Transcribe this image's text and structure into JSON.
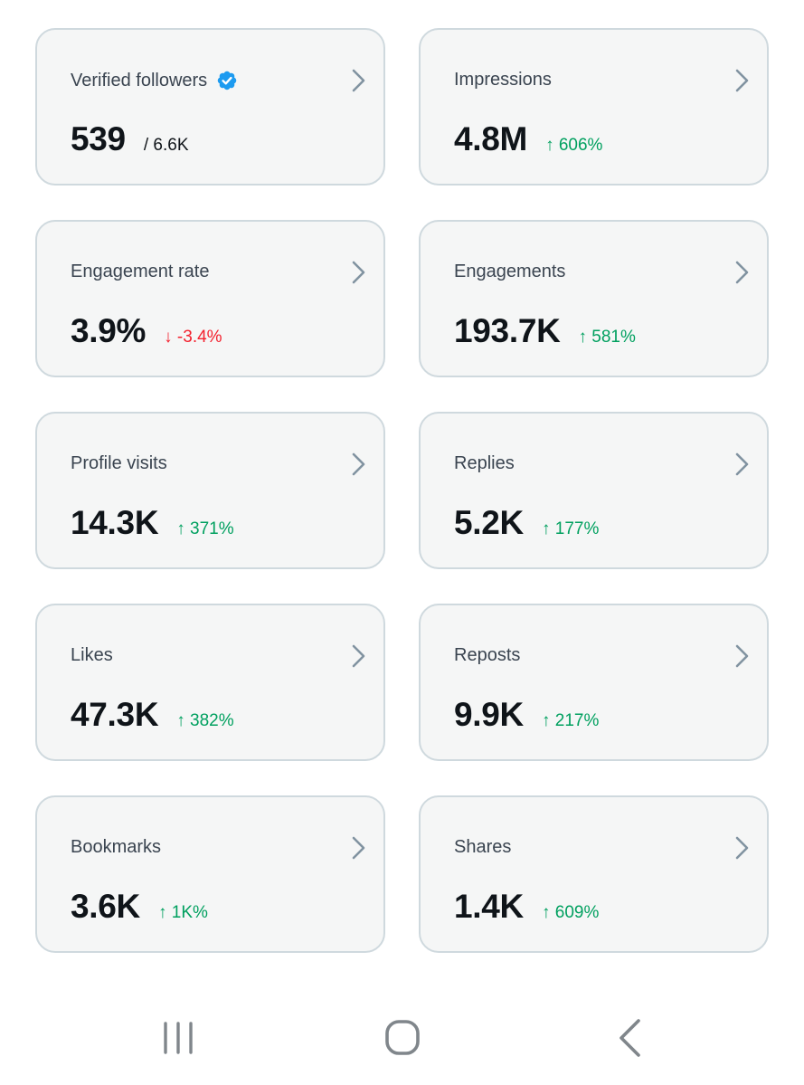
{
  "cards": [
    {
      "label": "Verified followers",
      "value": "539",
      "total": "/ 6.6K",
      "verified": true
    },
    {
      "label": "Impressions",
      "value": "4.8M",
      "change": "↑ 606%",
      "direction": "up"
    },
    {
      "label": "Engagement rate",
      "value": "3.9%",
      "change": "↓ -3.4%",
      "direction": "down"
    },
    {
      "label": "Engagements",
      "value": "193.7K",
      "change": "↑ 581%",
      "direction": "up"
    },
    {
      "label": "Profile visits",
      "value": "14.3K",
      "change": "↑ 371%",
      "direction": "up"
    },
    {
      "label": "Replies",
      "value": "5.2K",
      "change": "↑ 177%",
      "direction": "up"
    },
    {
      "label": "Likes",
      "value": "47.3K",
      "change": "↑ 382%",
      "direction": "up"
    },
    {
      "label": "Reposts",
      "value": "9.9K",
      "change": "↑ 217%",
      "direction": "up"
    },
    {
      "label": "Bookmarks",
      "value": "3.6K",
      "change": "↑ 1K%",
      "direction": "up"
    },
    {
      "label": "Shares",
      "value": "1.4K",
      "change": "↑ 609%",
      "direction": "up"
    }
  ],
  "colors": {
    "card_background": "#f5f6f6",
    "card_border": "#cfd9de",
    "up": "#00a05f",
    "down": "#f4212e",
    "verified_badge": "#1d9bf0",
    "chevron": "#8193a1",
    "nav_icons": "#80868b"
  },
  "icons": {
    "verified": "verified-badge-icon",
    "chevron": "chevron-right-icon",
    "nav_recents": "recent-apps-icon",
    "nav_home": "home-icon",
    "nav_back": "back-icon"
  }
}
